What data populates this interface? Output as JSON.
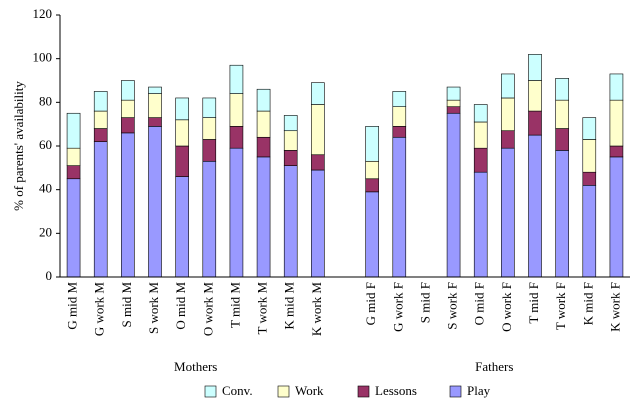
{
  "chart_data": {
    "type": "stacked_bar",
    "ylabel": "% of parents' availability",
    "categories": [
      "G mid M",
      "G work M",
      "S mid M",
      "S work M",
      "O mid M",
      "O work M",
      "T mid M",
      "T work M",
      "K mid M",
      "K work M",
      null,
      "G mid F",
      "G work F",
      "S mid F",
      "S work F",
      "O mid F",
      "O work F",
      "T mid F",
      "T work F",
      "K mid F",
      "K work F"
    ],
    "groups": [
      "Mothers",
      "Fathers"
    ],
    "series": [
      {
        "name": "Play",
        "color": "#9999ff",
        "values": [
          45,
          62,
          66,
          69,
          46,
          53,
          59,
          55,
          51,
          49,
          null,
          39,
          64,
          null,
          75,
          48,
          59,
          65,
          58,
          42,
          55
        ]
      },
      {
        "name": "Lessons",
        "color": "#993366",
        "values": [
          6,
          6,
          7,
          4,
          14,
          10,
          10,
          9,
          7,
          7,
          null,
          6,
          5,
          null,
          3,
          11,
          8,
          11,
          10,
          6,
          5
        ]
      },
      {
        "name": "Work",
        "color": "#ffffcc",
        "values": [
          8,
          8,
          8,
          11,
          12,
          10,
          15,
          12,
          9,
          23,
          null,
          8,
          9,
          null,
          3,
          12,
          15,
          14,
          13,
          15,
          21
        ]
      },
      {
        "name": "Conv.",
        "color": "#ccffff",
        "values": [
          16,
          9,
          9,
          3,
          10,
          9,
          13,
          10,
          7,
          10,
          null,
          16,
          7,
          null,
          6,
          8,
          11,
          12,
          10,
          10,
          12
        ]
      }
    ],
    "ylim": [
      0,
      120
    ],
    "yticks": [
      0,
      20,
      40,
      60,
      80,
      100,
      120
    ],
    "grid": false,
    "legend": "bottom"
  }
}
